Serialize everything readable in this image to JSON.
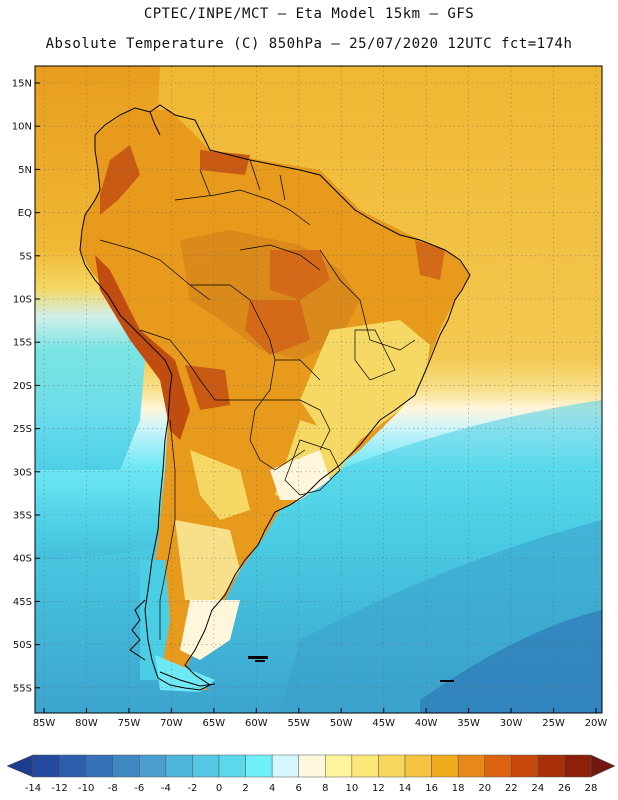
{
  "header": {
    "line1": "CPTEC/INPE/MCT —  Eta Model 15km — GFS",
    "line2": "Absolute Temperature (C) 850hPa — 25/07/2020 12UTC fct=174h"
  },
  "map": {
    "lat_labels": [
      "15N",
      "10N",
      "5N",
      "EQ",
      "5S",
      "10S",
      "15S",
      "20S",
      "25S",
      "30S",
      "35S",
      "40S",
      "45S",
      "50S",
      "55S"
    ],
    "lon_labels": [
      "85W",
      "80W",
      "75W",
      "70W",
      "65W",
      "60W",
      "55W",
      "50W",
      "45W",
      "40W",
      "35W",
      "30W",
      "25W",
      "20W"
    ],
    "colors": {
      "ocean_warm": "#f0b732",
      "land_warm": "#e79a1c",
      "hot": "#d46a18",
      "very_hot": "#b84a10",
      "mild": "#f6d964",
      "pale": "#fff6dc",
      "cyan_pale": "#ccf4fa",
      "cyan": "#6ee8f5",
      "teal": "#4bcde4",
      "blue": "#3aa0cc",
      "deep_blue": "#2c72b4",
      "coast": "#000000"
    }
  },
  "colorbar": {
    "ticks": [
      "-14",
      "-12",
      "-10",
      "-8",
      "-6",
      "-4",
      "-2",
      "0",
      "2",
      "4",
      "6",
      "8",
      "10",
      "12",
      "14",
      "16",
      "18",
      "20",
      "22",
      "24",
      "26",
      "28"
    ],
    "colors": [
      "#1e3c8c",
      "#234a9c",
      "#2d5eac",
      "#3672b8",
      "#3f88c4",
      "#4a9fd0",
      "#4fb6dc",
      "#54c8e4",
      "#5cd8ec",
      "#6ff0f8",
      "#d4f6fc",
      "#fff8dc",
      "#fdf49c",
      "#fbe878",
      "#f8d85c",
      "#f4c440",
      "#f0ac1c",
      "#e88818",
      "#dc6410",
      "#c8480c",
      "#a83008",
      "#8c2008",
      "#701810"
    ]
  }
}
